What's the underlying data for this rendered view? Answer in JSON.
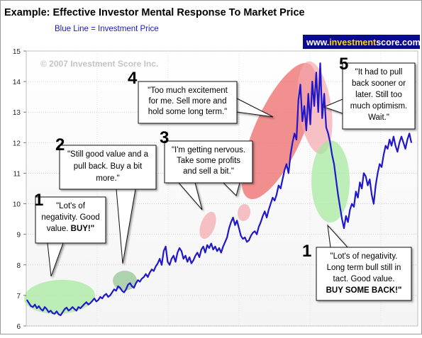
{
  "chart_data": {
    "type": "line",
    "title": "Example:  Effective Investor Mental Response To Market Price",
    "subtitle": "Blue Line = Investment Price",
    "copyright": "© 2007 Investment Score Inc.",
    "brand": {
      "prefix": "www.",
      "part1": "investment",
      "part2": "score",
      "suffix": ".com"
    },
    "ylim": [
      6,
      15
    ],
    "yticks": [
      "6",
      "7",
      "8",
      "9",
      "10",
      "11",
      "12",
      "13",
      "14",
      "15"
    ],
    "grid": true,
    "colors": {
      "line": "#2018c8",
      "subtitle": "#1a1ab8",
      "brand_bg": "#0a0a8c",
      "brand_highlight": "#ffd700",
      "green_zone": "#a8eaa0",
      "pink_zone": "#f3a6ae",
      "red_zone": "#ee6a6a"
    },
    "series": [
      {
        "values": [
          6.85,
          6.75,
          6.65,
          6.62,
          6.7,
          6.58,
          6.65,
          6.55,
          6.5,
          6.62,
          6.55,
          6.45,
          6.5,
          6.42,
          6.4,
          6.48,
          6.38,
          6.35,
          6.45,
          6.55,
          6.6,
          6.5,
          6.55,
          6.62,
          6.55,
          6.5,
          6.62,
          6.58,
          6.65,
          6.72,
          6.78,
          6.7,
          6.75,
          6.82,
          6.9,
          6.8,
          6.85,
          6.95,
          6.9,
          7.0,
          7.05,
          6.95,
          7.0,
          7.1,
          7.2,
          7.15,
          7.3,
          7.25,
          7.15,
          7.1,
          7.2,
          7.35,
          7.4,
          7.3,
          7.25,
          7.4,
          7.5,
          7.45,
          7.55,
          7.6,
          7.7,
          7.6,
          7.75,
          7.85,
          7.8,
          7.95,
          8.05,
          8.2,
          8.0,
          8.45,
          8.6,
          8.1,
          8.0,
          8.2,
          8.3,
          8.1,
          8.4,
          8.55,
          8.45,
          8.2,
          8.3,
          8.1,
          8.25,
          8.05,
          8.15,
          8.3,
          8.4,
          8.25,
          8.5,
          8.6,
          8.4,
          8.65,
          8.55,
          8.7,
          8.5,
          8.6,
          8.45,
          8.55,
          8.4,
          8.6,
          8.75,
          8.9,
          9.2,
          9.4,
          9.55,
          9.3,
          9.45,
          9.2,
          8.95,
          8.85,
          8.9,
          8.75,
          8.8,
          8.95,
          9.05,
          9.1,
          9.0,
          9.25,
          9.4,
          9.6,
          9.75,
          9.55,
          9.8,
          10.0,
          10.2,
          10.1,
          10.3,
          10.6,
          10.5,
          10.8,
          11.1,
          11.3,
          11.0,
          11.6,
          12.0,
          12.3,
          12.1,
          13.4,
          13.9,
          12.7,
          13.2,
          12.4,
          13.6,
          12.6,
          14.0,
          13.2,
          14.3,
          13.0,
          14.6,
          12.8,
          13.6,
          12.5,
          12.3,
          12.0,
          11.6,
          11.3,
          10.8,
          10.3,
          9.9,
          9.5,
          9.2,
          9.6,
          9.4,
          9.8,
          10.0,
          9.9,
          10.4,
          10.2,
          10.7,
          10.5,
          11.0,
          10.9,
          10.6,
          10.8,
          10.3,
          10.0,
          10.6,
          11.0,
          11.3,
          11.2,
          11.6,
          11.9,
          11.8,
          12.1,
          11.9,
          12.2,
          11.9,
          11.7,
          12.0,
          12.2,
          12.0,
          11.8,
          12.1,
          12.3,
          12.0
        ]
      }
    ],
    "annotations": [
      {
        "number": "1",
        "lines": [
          "\"Lot's of",
          "negativity.  Good",
          "value.  "
        ],
        "bold_tail": "BUY!\""
      },
      {
        "number": "2",
        "lines": [
          "\"Still good value and a",
          "pull back.  Buy a bit",
          "more.\""
        ]
      },
      {
        "number": "3",
        "lines": [
          "\"I'm getting nervous.",
          "Take some profits",
          "and sell a bit.\""
        ]
      },
      {
        "number": "4",
        "lines": [
          "\"Too much excitement",
          "for me.  Sell more and",
          "hold some long term.\""
        ]
      },
      {
        "number": "5",
        "lines": [
          "\"It had to pull",
          "back sooner or",
          "later. Still too",
          "much optimism.",
          "Wait.\""
        ]
      },
      {
        "number": "1",
        "lines": [
          "\"Lot's of negativity.",
          "Long term bull still in",
          "tact.  Good value."
        ],
        "bold_tail": "BUY SOME BACK!\""
      }
    ]
  }
}
